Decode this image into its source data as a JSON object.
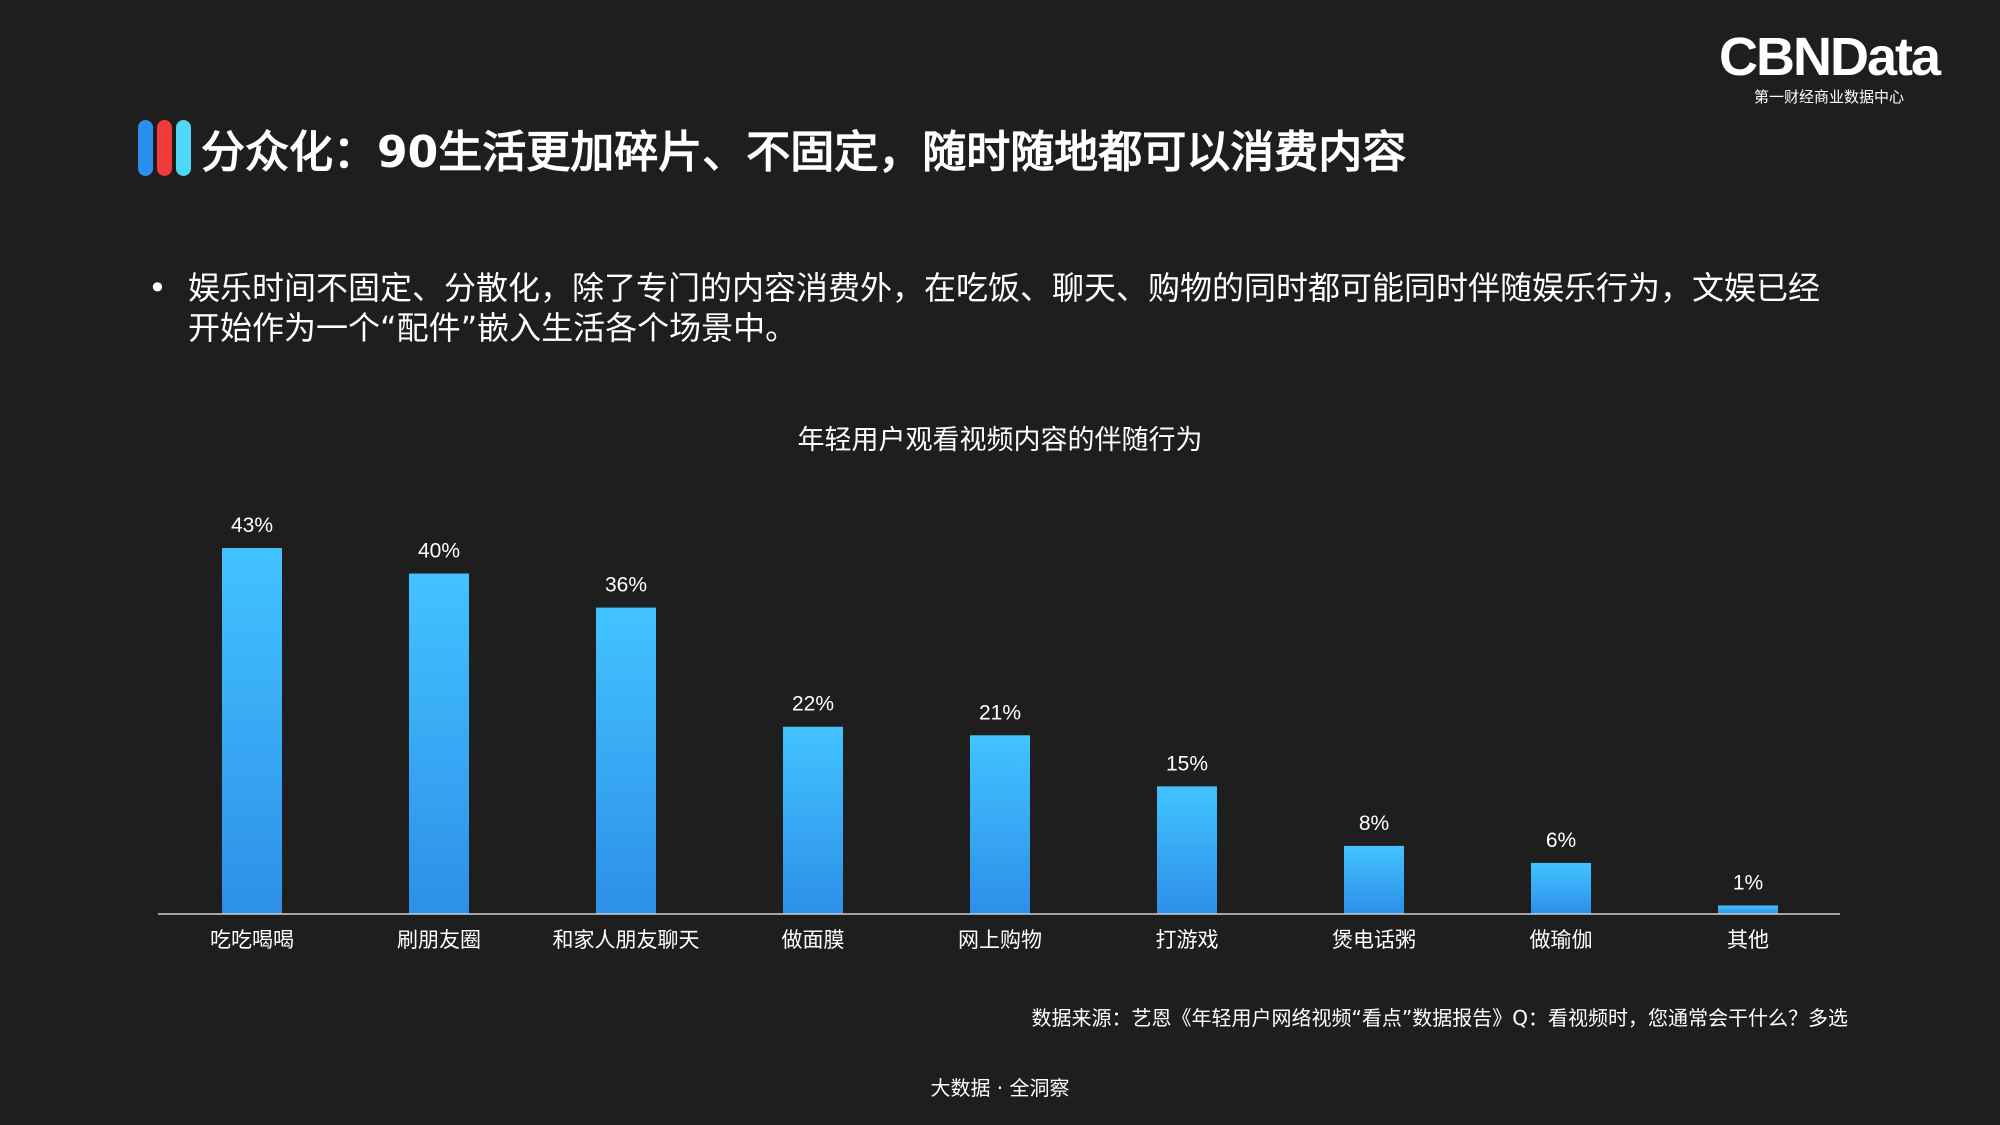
{
  "logo": {
    "main": "CBNData",
    "sub": "第一财经商业数据中心"
  },
  "header": {
    "title": "分众化：90生活更加碎片、不固定，随时随地都可以消费内容",
    "pill_colors": [
      "#2b8ff0",
      "#ef3b3b",
      "#4fd8f5"
    ]
  },
  "bullet": {
    "marker": "•",
    "text": "娱乐时间不固定、分散化，除了专门的内容消费外，在吃饭、聊天、购物的同时都可能同时伴随娱乐行为，文娱已经开始作为一个“配件”嵌入生活各个场景中。"
  },
  "chart_data": {
    "type": "bar",
    "title": "年轻用户观看视频内容的伴随行为",
    "categories": [
      "吃吃喝喝",
      "刷朋友圈",
      "和家人朋友聊天",
      "做面膜",
      "网上购物",
      "打游戏",
      "煲电话粥",
      "做瑜伽",
      "其他"
    ],
    "values": [
      43,
      40,
      36,
      22,
      21,
      15,
      8,
      6,
      1
    ],
    "value_labels": [
      "43%",
      "40%",
      "36%",
      "22%",
      "21%",
      "15%",
      "8%",
      "6%",
      "1%"
    ],
    "ylim": [
      0,
      43
    ],
    "grid": false,
    "bar_color_top": "#42c3ff",
    "bar_color_bottom": "#2d8fe8",
    "axis_color": "#cfcfcf"
  },
  "footnote": "数据来源：艺恩《年轻用户网络视频“看点”数据报告》Q：看视频时，您通常会干什么？多选",
  "footer": "大数据 · 全洞察"
}
